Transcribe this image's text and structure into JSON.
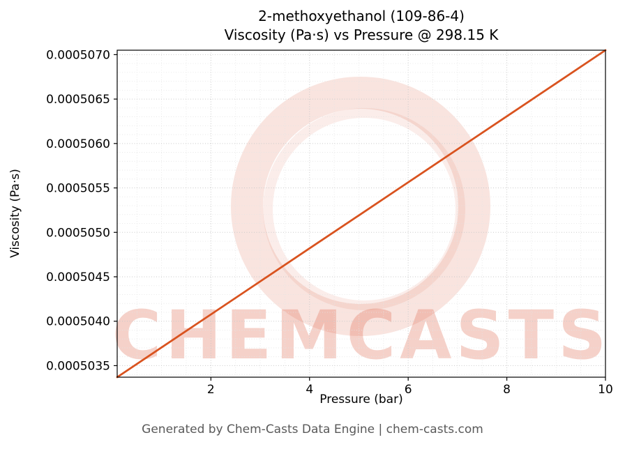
{
  "title": {
    "line1": "2-methoxyethanol (109-86-4)",
    "line2": "Viscosity (Pa·s) vs Pressure @ 298.15 K"
  },
  "footer": "Generated by Chem-Casts Data Engine | chem-casts.com",
  "watermark": {
    "text": "CHEMCASTS",
    "color": "#e06a50",
    "logo": "brush-circle-logo"
  },
  "chart_data": {
    "type": "line",
    "title": "2-methoxyethanol (109-86-4) — Viscosity (Pa·s) vs Pressure @ 298.15 K",
    "xlabel": "Pressure (bar)",
    "ylabel": "Viscosity (Pa·s)",
    "xlim": [
      0.1,
      10
    ],
    "ylim": [
      0.00050337,
      0.00050705
    ],
    "grid": true,
    "legend": "none",
    "line_color": "#d9531f",
    "x_ticks": [
      2,
      4,
      6,
      8,
      10
    ],
    "x_tick_labels": [
      "2",
      "4",
      "6",
      "8",
      "10"
    ],
    "y_ticks": [
      0.0005035,
      0.000504,
      0.0005045,
      0.000505,
      0.0005055,
      0.000506,
      0.0005065,
      0.000507
    ],
    "y_tick_labels": [
      "0.0005035",
      "0.0005040",
      "0.0005045",
      "0.0005050",
      "0.0005055",
      "0.0005060",
      "0.0005065",
      "0.0005070"
    ],
    "x_minor_step": 0.5,
    "y_minor_step": 1e-07,
    "series": [
      {
        "name": "viscosity_vs_pressure",
        "x": [
          0.1,
          1,
          2,
          3,
          4,
          5,
          6,
          7,
          8,
          9,
          10
        ],
        "y": [
          0.00050337,
          0.000503705,
          0.000504076,
          0.000504448,
          0.00050482,
          0.000505191,
          0.000505563,
          0.000505935,
          0.000506306,
          0.000506678,
          0.00050705
        ]
      }
    ]
  }
}
